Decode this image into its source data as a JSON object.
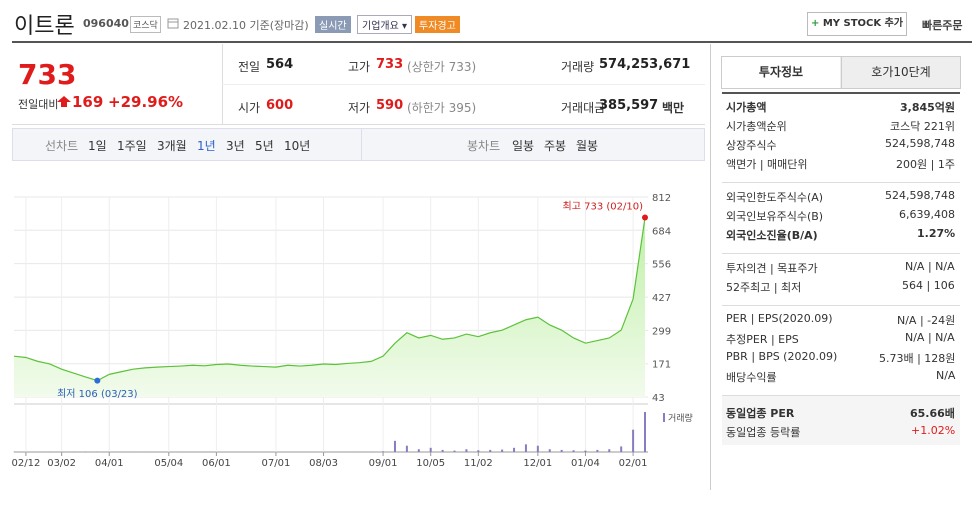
{
  "header": {
    "name": "이트론",
    "code": "096040",
    "market": "코스닥",
    "date": "2021.02.10 기준(장마감)",
    "buttons": [
      "실시간",
      "기업개요",
      "투자경고"
    ],
    "my_stock": "MY STOCK 추가",
    "quick_order": "빠른주문"
  },
  "quote": {
    "price": "733",
    "change_label": "전일대비",
    "change": "169",
    "change_rate": "+29.96%",
    "stats": [
      {
        "label": "전일",
        "value": "564"
      },
      {
        "label": "고가",
        "value": "733",
        "note": "(상한가 733)",
        "color": "#e01b1b"
      },
      {
        "label": "거래량",
        "value": "574,253,671"
      },
      {
        "label": "시가",
        "value": "600",
        "color": "#e01b1b"
      },
      {
        "label": "저가",
        "value": "590",
        "note": "(하한가 395)",
        "color": "#e01b1b"
      },
      {
        "label": "거래대금",
        "value": "385,597",
        "note": "백만"
      }
    ]
  },
  "periods": {
    "line_label": "선차트",
    "line": [
      "1일",
      "1주일",
      "3개월",
      "1년",
      "3년",
      "5년",
      "10년"
    ],
    "selected": 3,
    "candle_label": "봉차트",
    "candle": [
      "일봉",
      "주봉",
      "월봉"
    ]
  },
  "chart_data": {
    "type": "line",
    "color": "#5cc23a",
    "grid": true,
    "categories": [
      null,
      "02/12",
      null,
      null,
      "03/02",
      null,
      null,
      null,
      "04/01",
      null,
      null,
      null,
      null,
      "05/04",
      null,
      null,
      null,
      "06/01",
      null,
      null,
      null,
      null,
      "07/01",
      null,
      null,
      null,
      "08/03",
      null,
      null,
      null,
      null,
      "09/01",
      null,
      null,
      null,
      "10/05",
      null,
      null,
      null,
      "11/02",
      null,
      null,
      null,
      null,
      "12/01",
      null,
      null,
      null,
      "01/04",
      null,
      null,
      null,
      "02/01",
      null
    ],
    "values": [
      200,
      195,
      180,
      170,
      150,
      135,
      120,
      106,
      130,
      140,
      150,
      155,
      158,
      160,
      162,
      165,
      163,
      168,
      170,
      165,
      162,
      160,
      158,
      165,
      162,
      165,
      170,
      168,
      172,
      175,
      180,
      200,
      250,
      290,
      270,
      280,
      265,
      270,
      285,
      275,
      290,
      300,
      320,
      340,
      350,
      320,
      300,
      270,
      250,
      260,
      270,
      300,
      420,
      733
    ],
    "ylim": [
      43,
      812
    ],
    "yticks": [
      43,
      171,
      299,
      427,
      556,
      684,
      812
    ],
    "max_label": "최고 733 (02/10)",
    "min_label": "최저 106 (03/23)",
    "volume": {
      "name": "거래량",
      "color": "#8a7cc0",
      "values": [
        3,
        2,
        2,
        3,
        4,
        3,
        5,
        6,
        3,
        2,
        2,
        2,
        1,
        1,
        2,
        1,
        1,
        2,
        1,
        1,
        1,
        1,
        1,
        2,
        1,
        1,
        2,
        1,
        1,
        2,
        3,
        10,
        160,
        90,
        40,
        60,
        30,
        20,
        40,
        25,
        30,
        35,
        60,
        110,
        90,
        40,
        30,
        25,
        20,
        30,
        40,
        80,
        320,
        574
      ]
    }
  },
  "info": {
    "tabs": [
      "투자정보",
      "호가10단계"
    ],
    "groups": [
      [
        {
          "label": "시가총액",
          "value": "3,845억원",
          "bold": true
        },
        {
          "label": "시가총액순위",
          "value": "코스닥 221위"
        },
        {
          "label": "상장주식수",
          "value": "524,598,748"
        },
        {
          "label": "액면가 | 매매단위",
          "value": "200원 | 1주"
        }
      ],
      [
        {
          "label": "외국인한도주식수(A)",
          "value": "524,598,748"
        },
        {
          "label": "외국인보유주식수(B)",
          "value": "6,639,408"
        },
        {
          "label": "외국인소진율(B/A)",
          "value": "1.27%",
          "bold": true
        }
      ],
      [
        {
          "label": "투자의견 | 목표주가",
          "value": "N/A | N/A"
        },
        {
          "label": "52주최고 | 최저",
          "value": "564 | 106"
        }
      ],
      [
        {
          "label": "PER | EPS(2020.09)",
          "value": "N/A | -24원"
        },
        {
          "label": "추정PER | EPS",
          "value": "N/A | N/A"
        },
        {
          "label": "PBR | BPS (2020.09)",
          "value": "5.73배 | 128원"
        },
        {
          "label": "배당수익률",
          "value": "N/A"
        }
      ],
      [
        {
          "label": "동일업종 PER",
          "value": "65.66배",
          "bold": true
        },
        {
          "label": "동일업종 등락률",
          "value": "+1.02%",
          "color": "#e01b1b"
        }
      ]
    ]
  }
}
